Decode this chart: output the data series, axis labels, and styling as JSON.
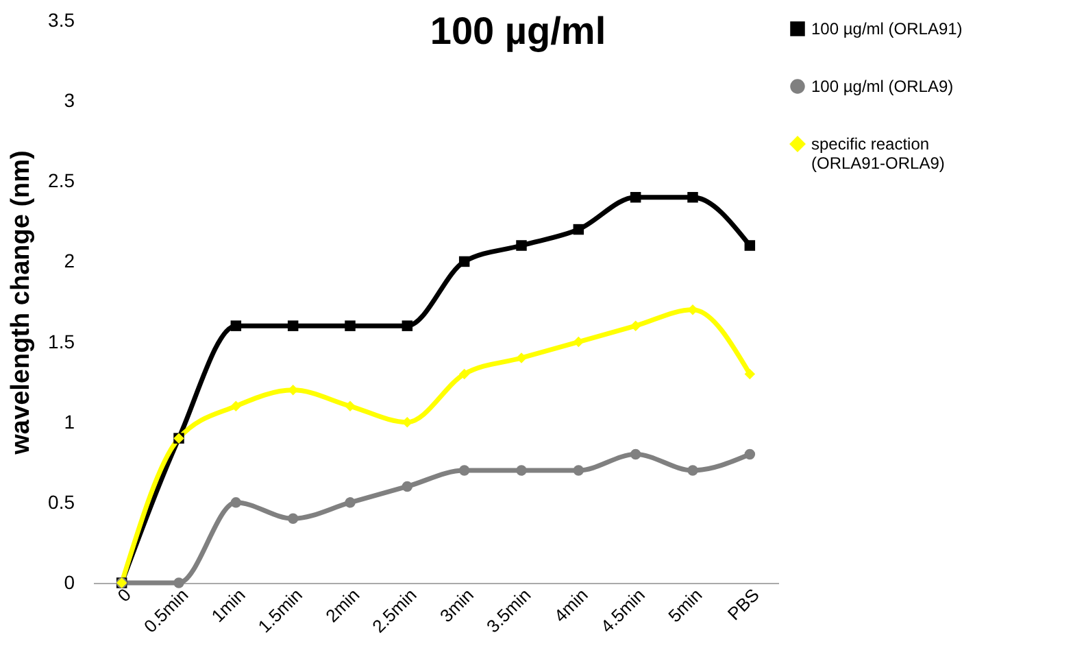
{
  "chart_data": {
    "type": "line",
    "title": "100 µg/ml",
    "ylabel": "wavelength change (nm)",
    "categories": [
      "0",
      "0.5min",
      "1min",
      "1.5min",
      "2min",
      "2.5min",
      "3min",
      "3.5min",
      "4min",
      "4.5min",
      "5min",
      "PBS"
    ],
    "series": [
      {
        "name": "100 µg/ml (ORLA91)",
        "color": "#000000",
        "marker": "square",
        "values": [
          0,
          0.9,
          1.6,
          1.6,
          1.6,
          1.6,
          2.0,
          2.1,
          2.2,
          2.4,
          2.4,
          2.1
        ]
      },
      {
        "name": "100 µg/ml (ORLA9)",
        "color": "#808080",
        "marker": "circle",
        "values": [
          0,
          0,
          0.5,
          0.4,
          0.5,
          0.6,
          0.7,
          0.7,
          0.7,
          0.8,
          0.7,
          0.8
        ]
      },
      {
        "name": "specific reaction (ORLA91-ORLA9)",
        "color": "#ffff00",
        "marker": "diamond",
        "values": [
          0,
          0.9,
          1.1,
          1.2,
          1.1,
          1.0,
          1.3,
          1.4,
          1.5,
          1.6,
          1.7,
          1.3
        ]
      }
    ],
    "ylim": [
      0,
      3.5
    ],
    "yticks": [
      0,
      0.5,
      1,
      1.5,
      2,
      2.5,
      3,
      3.5
    ],
    "grid": false,
    "legend": "right"
  }
}
